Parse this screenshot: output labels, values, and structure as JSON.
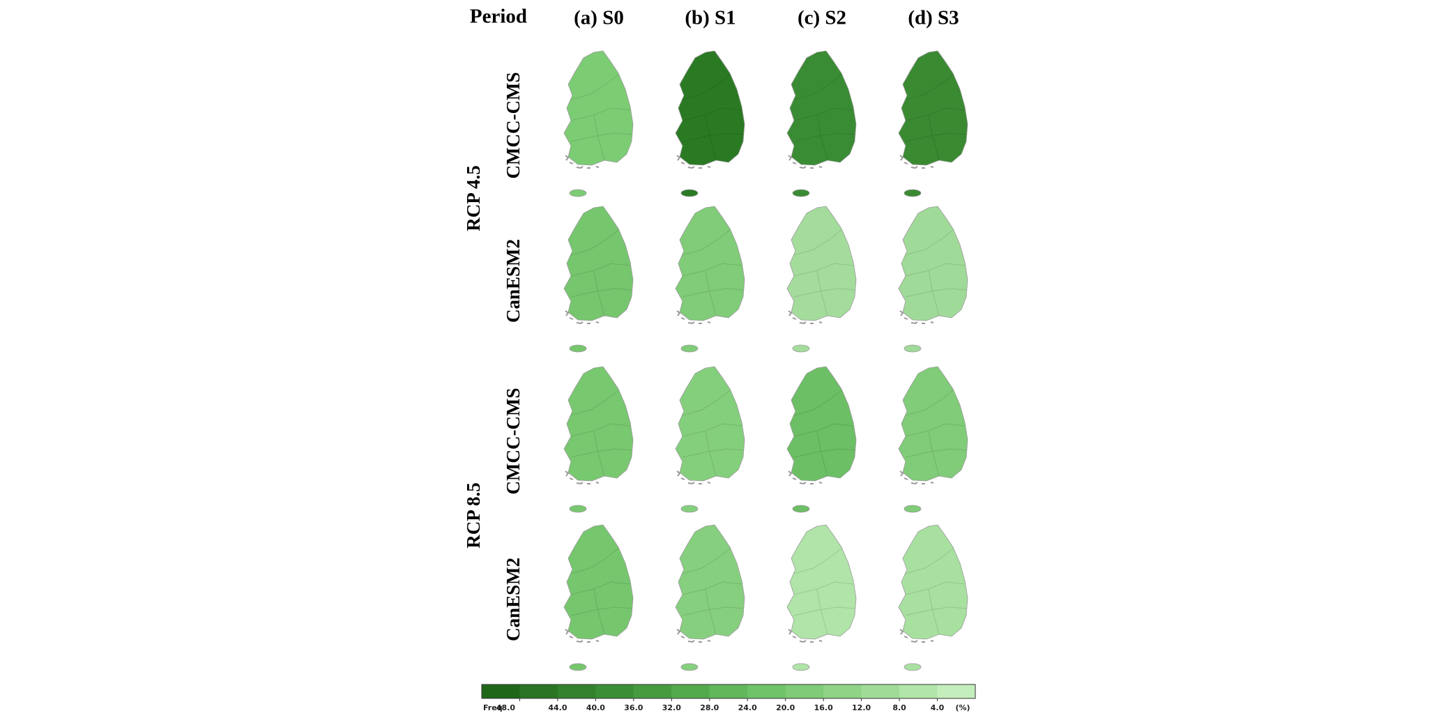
{
  "header": {
    "corner": "Period",
    "columns": [
      "(a) S0",
      "(b) S1",
      "(c) S2",
      "(d) S3"
    ]
  },
  "scenarios": [
    {
      "name": "RCP 4.5",
      "models": [
        {
          "name": "CMCC-CMS",
          "colors": [
            "#7ccc74",
            "#2a7a24",
            "#3a8c34",
            "#3a8a32"
          ]
        },
        {
          "name": "CanESM2",
          "colors": [
            "#76c66e",
            "#80cc78",
            "#a4dc9c",
            "#a0da98"
          ]
        }
      ]
    },
    {
      "name": "RCP 8.5",
      "models": [
        {
          "name": "CMCC-CMS",
          "colors": [
            "#78c870",
            "#84cf7c",
            "#6cbf64",
            "#80cc78"
          ]
        },
        {
          "name": "CanESM2",
          "colors": [
            "#76c66e",
            "#86cf7e",
            "#b0e4a8",
            "#a8e0a0"
          ]
        }
      ]
    }
  ],
  "legend": {
    "title": "Freq",
    "unit": "(%)",
    "colors": [
      "#1f6619",
      "#2a7424",
      "#33812d",
      "#3c8e36",
      "#469b3f",
      "#53aa4b",
      "#61b75a",
      "#70c268",
      "#7fcb77",
      "#8fd386",
      "#a0dc97",
      "#b2e5a9",
      "#c5eebd"
    ],
    "ticks": [
      {
        "value": 48,
        "label": "48.0"
      },
      {
        "value": 44,
        "label": "44.0"
      },
      {
        "value": 40,
        "label": "40.0"
      },
      {
        "value": 36,
        "label": "36.0"
      },
      {
        "value": 32,
        "label": "32.0"
      },
      {
        "value": 28,
        "label": "28.0"
      },
      {
        "value": 24,
        "label": "24.0"
      },
      {
        "value": 20,
        "label": "20.0"
      },
      {
        "value": 16,
        "label": "16.0"
      },
      {
        "value": 12,
        "label": "12.0"
      },
      {
        "value": 8,
        "label": "8.0"
      },
      {
        "value": 4,
        "label": "4.0"
      }
    ]
  }
}
